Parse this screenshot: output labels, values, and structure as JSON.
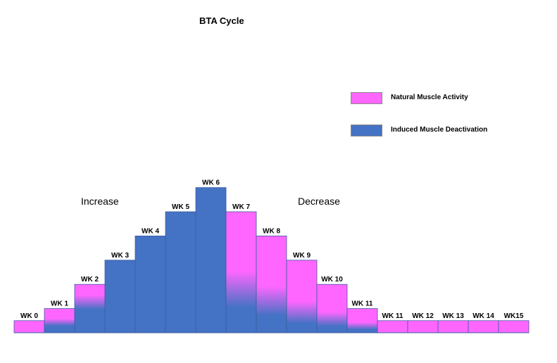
{
  "chart_data": {
    "type": "bar",
    "title": "BTA Cycle",
    "xlabel": "",
    "ylabel": "",
    "ylim": [
      0,
      6
    ],
    "grid": false,
    "categories": [
      "WK 0",
      "WK 1",
      "WK 2",
      "WK 3",
      "WK 4",
      "WK 5",
      "WK 6",
      "WK 7",
      "WK 8",
      "WK 9",
      "WK 10",
      "WK 11",
      "WK 11",
      "WK 12",
      "WK 13",
      "WK 14",
      "WK15"
    ],
    "values": [
      0.4,
      0.8,
      1.6,
      2.4,
      3.2,
      4.0,
      4.8,
      4.0,
      3.2,
      2.4,
      1.6,
      0.8,
      0.4,
      0.4,
      0.4,
      0.4,
      0.4
    ],
    "induced_fraction": [
      0,
      0.4,
      0.6,
      1,
      1,
      1,
      1,
      0.33,
      0.3,
      0.25,
      0.25,
      0.25,
      0,
      0,
      0,
      0,
      0
    ],
    "series": [
      {
        "name": "Natural Muscle Activity",
        "color": "#ff66ff"
      },
      {
        "name": "Induced Muscle Deactivation",
        "color": "#4472c4"
      }
    ],
    "legend_position": "top-right",
    "annotations": [
      "Increase",
      "Decrease"
    ]
  }
}
